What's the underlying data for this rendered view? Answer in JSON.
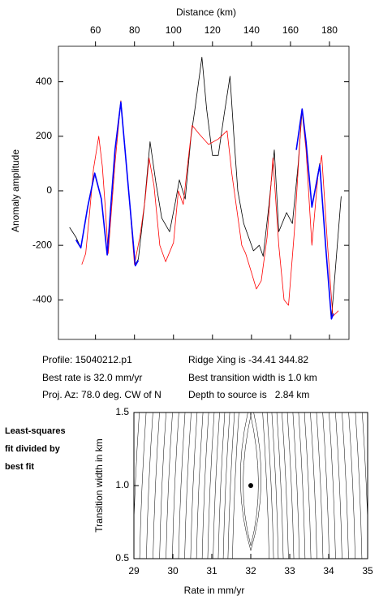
{
  "chart_data": [
    {
      "type": "line",
      "title": "Distance (km)",
      "y_label": "Anomaly amplitude",
      "xlim": [
        41,
        190
      ],
      "xticks": [
        60,
        80,
        100,
        120,
        140,
        160,
        180
      ],
      "ylim": [
        -545,
        530
      ],
      "yticks": [
        -400,
        -200,
        0,
        200,
        400
      ],
      "series": [
        {
          "color": "#000000",
          "x": [
            46.7,
            50,
            52.5,
            56,
            59.6,
            63,
            66,
            70,
            73,
            77,
            80.4,
            82,
            85,
            88,
            91,
            94,
            98,
            101,
            103,
            106,
            109,
            111,
            114.6,
            117,
            120,
            123,
            126,
            129,
            131,
            133,
            136,
            139,
            141,
            144,
            146,
            149,
            151.7,
            154,
            158,
            161,
            164,
            166,
            168,
            171,
            175,
            178,
            181,
            184,
            186
          ],
          "values": [
            -134,
            -170,
            -209,
            -60,
            60,
            -30,
            -230,
            150,
            330,
            0,
            -270,
            -250,
            -60,
            180,
            30,
            -100,
            -150,
            -40,
            40,
            -30,
            200,
            300,
            490,
            300,
            130,
            130,
            280,
            420,
            200,
            0,
            -120,
            -180,
            -220,
            -200,
            -240,
            -50,
            150,
            -150,
            -80,
            -120,
            100,
            300,
            180,
            -60,
            100,
            -200,
            -470,
            -200,
            -20
          ]
        },
        {
          "color": "#ff0000",
          "x": [
            53,
            55,
            57,
            59,
            61.7,
            63.5,
            65,
            66.5,
            70,
            73,
            77,
            80,
            83,
            85.5,
            87.5,
            90,
            93,
            96,
            100,
            102.5,
            105,
            107,
            109.6,
            113,
            118,
            123,
            127.5,
            130,
            135,
            137,
            140,
            142.5,
            145,
            148,
            151,
            154,
            156.7,
            159,
            162,
            165.8,
            168,
            171,
            174,
            176,
            179,
            181.7,
            184.6
          ],
          "values": [
            -270,
            -230,
            -80,
            80,
            200,
            90,
            -60,
            -230,
            100,
            330,
            0,
            -270,
            -160,
            -30,
            120,
            20,
            -200,
            -260,
            -190,
            0,
            -50,
            80,
            240,
            210,
            170,
            190,
            220,
            60,
            -200,
            -230,
            -300,
            -360,
            -330,
            -170,
            120,
            -200,
            -400,
            -420,
            -150,
            300,
            150,
            -200,
            50,
            130,
            -200,
            -460,
            -440
          ]
        },
        {
          "color": "#0000ff",
          "x": [
            50,
            52.5,
            56,
            59.6,
            63,
            66,
            70,
            73,
            77,
            80.4,
            82,
            null,
            163,
            166,
            168,
            171,
            175,
            178,
            181,
            182
          ],
          "values": [
            -180,
            -209,
            -60,
            65,
            -30,
            -235,
            150,
            325,
            0,
            -275,
            -255,
            null,
            150,
            300,
            180,
            -60,
            95,
            -200,
            -470,
            -450
          ]
        }
      ]
    },
    {
      "type": "contour",
      "x_label": "Rate in mm/yr",
      "y_label": "Transition width in km",
      "xlim": [
        29,
        35
      ],
      "xticks": [
        29,
        30,
        31,
        32,
        33,
        34,
        35
      ],
      "ylim": [
        0.5,
        1.5
      ],
      "yticks": [
        {
          "value": 0.5,
          "label": "0.5"
        },
        {
          "value": 1,
          "label": "1.0"
        },
        {
          "value": 1.5,
          "label": "1.5"
        }
      ],
      "best_fit": {
        "x": 32,
        "y": 1
      }
    }
  ],
  "info": {
    "left": [
      "Profile: 15040212.p1",
      "Best rate is 32.0 mm/yr",
      "Proj. Az: 78.0 deg. CW of N"
    ],
    "right": [
      "Ridge Xing is -34.41 344.82",
      "Best transition width is 1.0 km",
      "Depth to source is   2.84 km"
    ]
  },
  "note": [
    "Least-squares",
    "fit divided by",
    "best fit"
  ]
}
